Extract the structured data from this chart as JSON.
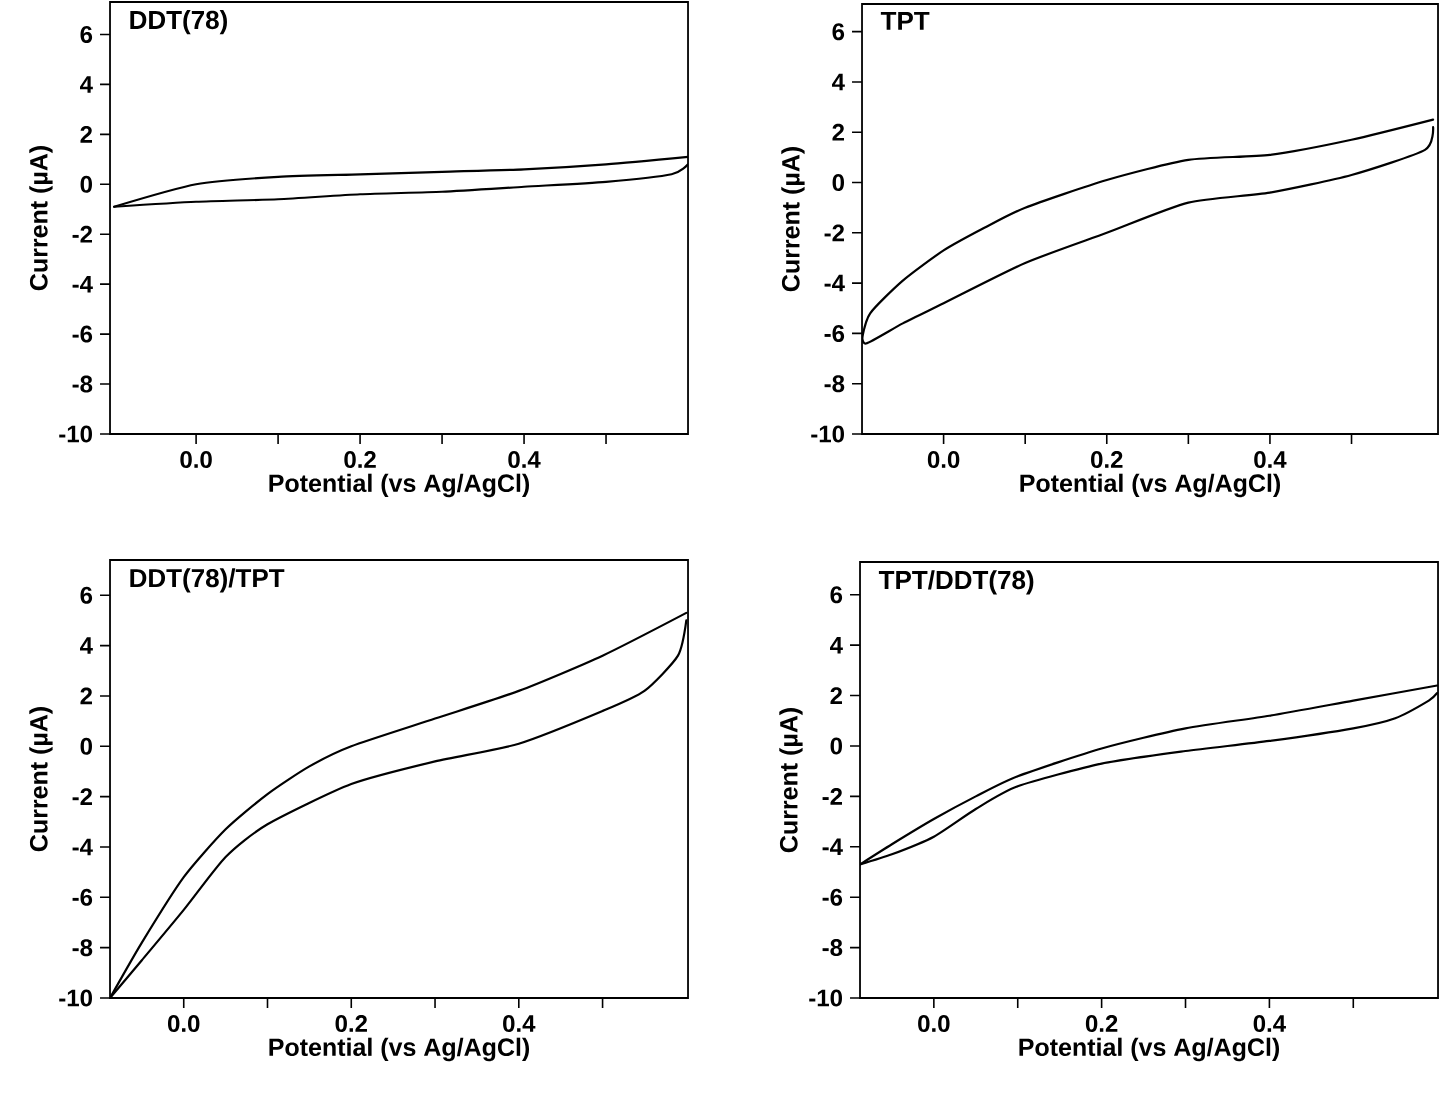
{
  "chart_data": [
    {
      "type": "line",
      "title": "DDT(78)",
      "xlabel": "Potential (vs Ag/AgCl)",
      "ylabel": "Current (µA)",
      "series": [
        {
          "color": "#000000",
          "x": [
            -0.1,
            0.0,
            0.1,
            0.2,
            0.3,
            0.4,
            0.5,
            0.6
          ],
          "values": [
            -0.9,
            0.0,
            0.3,
            0.4,
            0.5,
            0.6,
            0.8,
            1.1
          ]
        },
        {
          "color": "#000000",
          "x": [
            0.6,
            0.58,
            0.5,
            0.4,
            0.3,
            0.2,
            0.1,
            0.0,
            -0.1
          ],
          "values": [
            0.8,
            0.4,
            0.1,
            -0.1,
            -0.3,
            -0.4,
            -0.6,
            -0.7,
            -0.9
          ]
        }
      ],
      "xlim": [
        -0.105,
        0.6
      ],
      "ylim": [
        -10,
        7.3
      ],
      "xticks": [
        {
          "value": 0,
          "label": "0.0"
        },
        {
          "value": 0.1,
          "label": null
        },
        {
          "value": 0.2,
          "label": "0.2"
        },
        {
          "value": 0.3,
          "label": null
        },
        {
          "value": 0.4,
          "label": "0.4"
        },
        {
          "value": 0.5,
          "label": null
        }
      ],
      "yticks": [
        -10,
        -8,
        -6,
        -4,
        -2,
        0,
        2,
        4,
        6
      ]
    },
    {
      "type": "line",
      "title": "TPT",
      "xlabel": "Potential (vs Ag/AgCl)",
      "ylabel": "Current (µA)",
      "series": [
        {
          "color": "#000000",
          "x": [
            -0.1,
            -0.09,
            -0.05,
            0.0,
            0.05,
            0.1,
            0.2,
            0.3,
            0.4,
            0.5,
            0.6
          ],
          "values": [
            -6.2,
            -5.2,
            -3.9,
            -2.7,
            -1.8,
            -1.0,
            0.1,
            0.9,
            1.1,
            1.7,
            2.5
          ]
        },
        {
          "color": "#000000",
          "x": [
            0.6,
            0.59,
            0.5,
            0.4,
            0.3,
            0.2,
            0.1,
            0.0,
            -0.05,
            -0.095,
            -0.1
          ],
          "values": [
            2.2,
            1.3,
            0.3,
            -0.4,
            -0.8,
            -2.0,
            -3.2,
            -4.8,
            -5.6,
            -6.4,
            -6.0
          ]
        }
      ],
      "xlim": [
        -0.1,
        0.606
      ],
      "ylim": [
        -10,
        7.1
      ],
      "xticks": [
        {
          "value": 0,
          "label": "0.0"
        },
        {
          "value": 0.1,
          "label": null
        },
        {
          "value": 0.2,
          "label": "0.2"
        },
        {
          "value": 0.3,
          "label": null
        },
        {
          "value": 0.4,
          "label": "0.4"
        },
        {
          "value": 0.5,
          "label": null
        }
      ],
      "yticks": [
        -10,
        -8,
        -6,
        -4,
        -2,
        0,
        2,
        4,
        6
      ]
    },
    {
      "type": "line",
      "title": "DDT(78)/TPT",
      "xlabel": "Potential (vs Ag/AgCl)",
      "ylabel": "Current (µA)",
      "series": [
        {
          "color": "#000000",
          "x": [
            -0.088,
            -0.05,
            0.0,
            0.05,
            0.1,
            0.15,
            0.2,
            0.3,
            0.4,
            0.5,
            0.6
          ],
          "values": [
            -10,
            -7.8,
            -5.2,
            -3.3,
            -1.9,
            -0.8,
            0.0,
            1.1,
            2.2,
            3.6,
            5.3
          ]
        },
        {
          "color": "#000000",
          "x": [
            0.6,
            0.59,
            0.55,
            0.5,
            0.4,
            0.3,
            0.2,
            0.1,
            0.05,
            0.0,
            -0.05,
            -0.088
          ],
          "values": [
            5.0,
            3.6,
            2.2,
            1.4,
            0.1,
            -0.6,
            -1.5,
            -3.1,
            -4.4,
            -6.5,
            -8.5,
            -10
          ]
        }
      ],
      "xlim": [
        -0.088,
        0.602
      ],
      "ylim": [
        -10,
        7.4
      ],
      "xticks": [
        {
          "value": 0,
          "label": "0.0"
        },
        {
          "value": 0.1,
          "label": null
        },
        {
          "value": 0.2,
          "label": "0.2"
        },
        {
          "value": 0.3,
          "label": null
        },
        {
          "value": 0.4,
          "label": "0.4"
        },
        {
          "value": 0.5,
          "label": null
        }
      ],
      "yticks": [
        -10,
        -8,
        -6,
        -4,
        -2,
        0,
        2,
        4,
        6
      ]
    },
    {
      "type": "line",
      "title": "TPT/DDT(78)",
      "xlabel": "Potential (vs Ag/AgCl)",
      "ylabel": "Current (µA)",
      "series": [
        {
          "color": "#000000",
          "x": [
            -0.088,
            -0.05,
            0.0,
            0.05,
            0.1,
            0.2,
            0.3,
            0.4,
            0.5,
            0.6
          ],
          "values": [
            -4.7,
            -3.9,
            -2.9,
            -2.0,
            -1.2,
            -0.1,
            0.7,
            1.2,
            1.8,
            2.4
          ]
        },
        {
          "color": "#000000",
          "x": [
            0.6,
            0.59,
            0.55,
            0.5,
            0.4,
            0.3,
            0.2,
            0.1,
            0.05,
            0.0,
            -0.05,
            -0.088
          ],
          "values": [
            2.1,
            1.8,
            1.1,
            0.7,
            0.2,
            -0.2,
            -0.7,
            -1.6,
            -2.5,
            -3.6,
            -4.3,
            -4.7
          ]
        }
      ],
      "xlim": [
        -0.088,
        0.601
      ],
      "ylim": [
        -10,
        7.3
      ],
      "xticks": [
        {
          "value": 0,
          "label": "0.0"
        },
        {
          "value": 0.1,
          "label": null
        },
        {
          "value": 0.2,
          "label": "0.2"
        },
        {
          "value": 0.3,
          "label": null
        },
        {
          "value": 0.4,
          "label": "0.4"
        },
        {
          "value": 0.5,
          "label": null
        }
      ],
      "yticks": [
        -10,
        -8,
        -6,
        -4,
        -2,
        0,
        2,
        4,
        6
      ]
    }
  ]
}
